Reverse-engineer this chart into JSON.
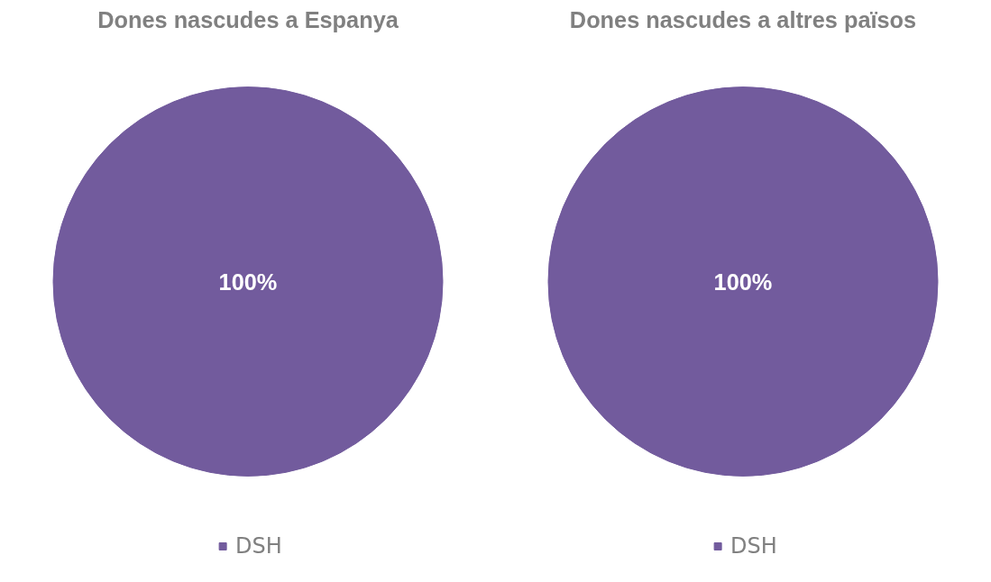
{
  "chart_data": [
    {
      "type": "pie",
      "title": "Dones nascudes a Espanya",
      "categories": [
        "DSH"
      ],
      "values": [
        100
      ],
      "colors": [
        "#725b9d"
      ],
      "value_labels": [
        "100%"
      ],
      "legend": "bottom"
    },
    {
      "type": "pie",
      "title": "Dones nascudes a altres països",
      "categories": [
        "DSH"
      ],
      "values": [
        100
      ],
      "colors": [
        "#725b9d"
      ],
      "value_labels": [
        "100%"
      ],
      "legend": "bottom"
    }
  ]
}
